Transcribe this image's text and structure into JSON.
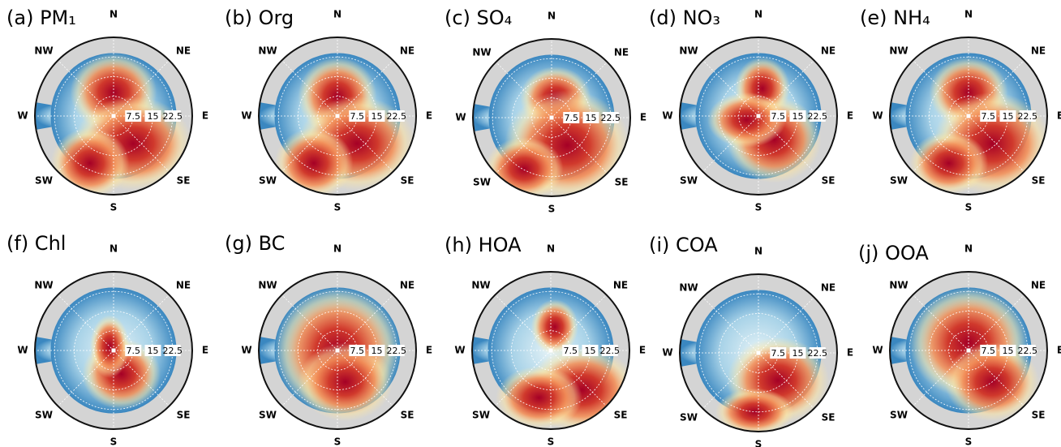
{
  "chart_data": [
    {
      "type": "polar",
      "title": "(a) PM₁",
      "directions": [
        "N",
        "NE",
        "E",
        "SE",
        "S",
        "SW",
        "W",
        "NW"
      ],
      "rlim": [
        0,
        30
      ],
      "rticks": [
        7.5,
        15,
        22.5
      ]
    },
    {
      "type": "polar",
      "title": "(b) Org",
      "directions": [
        "N",
        "NE",
        "E",
        "SE",
        "S",
        "SW",
        "W",
        "NW"
      ],
      "rlim": [
        0,
        30
      ],
      "rticks": [
        7.5,
        15,
        22.5
      ]
    },
    {
      "type": "polar",
      "title": "(c) SO₄",
      "directions": [
        "N",
        "NE",
        "E",
        "SE",
        "S",
        "SW",
        "W",
        "NW"
      ],
      "rlim": [
        0,
        30
      ],
      "rticks": [
        7.5,
        15,
        22.5
      ]
    },
    {
      "type": "polar",
      "title": "(d) NO₃",
      "directions": [
        "N",
        "NE",
        "E",
        "SE",
        "S",
        "SW",
        "W",
        "NW"
      ],
      "rlim": [
        0,
        30
      ],
      "rticks": [
        7.5,
        15,
        22.5
      ]
    },
    {
      "type": "polar",
      "title": "(e) NH₄",
      "directions": [
        "N",
        "NE",
        "E",
        "SE",
        "S",
        "SW",
        "W",
        "NW"
      ],
      "rlim": [
        0,
        30
      ],
      "rticks": [
        7.5,
        15,
        22.5
      ]
    },
    {
      "type": "polar",
      "title": "(f) Chl",
      "directions": [
        "N",
        "NE",
        "E",
        "SE",
        "S",
        "SW",
        "W",
        "NW"
      ],
      "rlim": [
        0,
        30
      ],
      "rticks": [
        7.5,
        15,
        22.5
      ]
    },
    {
      "type": "polar",
      "title": "(g) BC",
      "directions": [
        "N",
        "NE",
        "E",
        "SE",
        "S",
        "SW",
        "W",
        "NW"
      ],
      "rlim": [
        0,
        30
      ],
      "rticks": [
        7.5,
        15,
        22.5
      ]
    },
    {
      "type": "polar",
      "title": "(h) HOA",
      "directions": [
        "N",
        "NE",
        "E",
        "SE",
        "S",
        "SW",
        "W",
        "NW"
      ],
      "rlim": [
        0,
        30
      ],
      "rticks": [
        7.5,
        15,
        22.5
      ]
    },
    {
      "type": "polar",
      "title": "(i) COA",
      "directions": [
        "N",
        "NE",
        "E",
        "SE",
        "S",
        "SW",
        "W",
        "NW"
      ],
      "rlim": [
        0,
        30
      ],
      "rticks": [
        7.5,
        15,
        22.5
      ]
    },
    {
      "type": "polar",
      "title": "(j) OOA",
      "directions": [
        "N",
        "NE",
        "E",
        "SE",
        "S",
        "SW",
        "W",
        "NW"
      ],
      "rlim": [
        0,
        30
      ],
      "rticks": [
        7.5,
        15,
        22.5
      ]
    }
  ]
}
